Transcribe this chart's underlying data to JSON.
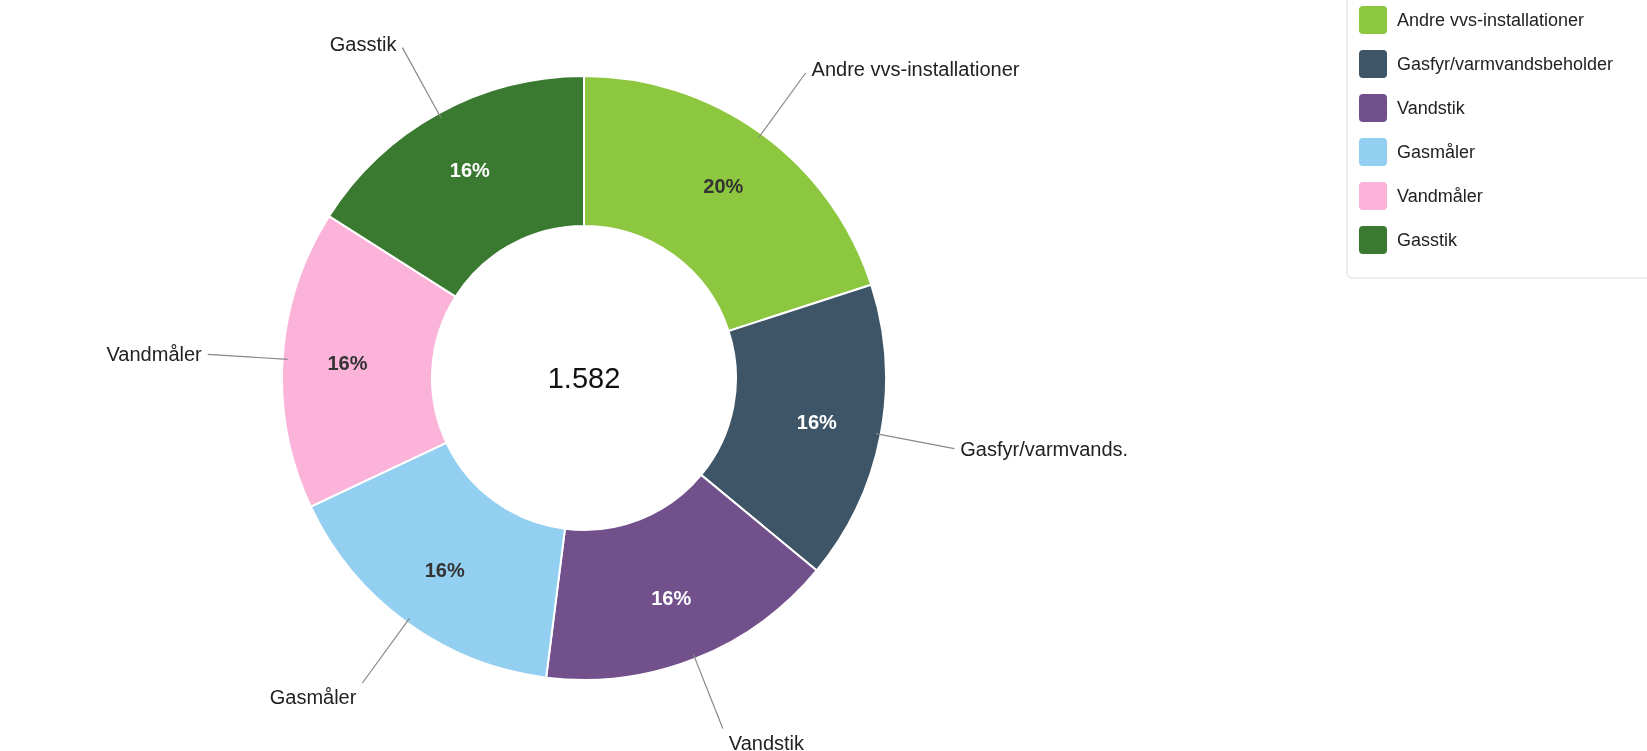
{
  "chart_data": {
    "type": "donut",
    "categories": [
      "Andre vvs-installationer",
      "Gasfyr/varmvandsbeholder",
      "Vandstik",
      "Gasmåler",
      "Vandmåler",
      "Gasstik"
    ],
    "values": [
      20,
      16,
      16,
      16,
      16,
      16
    ],
    "value_labels": [
      "20%",
      "16%",
      "16%",
      "16%",
      "16%",
      "16%"
    ],
    "colors": [
      "#8dc63f",
      "#3d5566",
      "#72508c",
      "#92cff0",
      "#fbb3d9",
      "#3a7a30"
    ],
    "annotations": [
      "1.582",
      "Andre vvs-installationer",
      "Gasfyr/varmvands.",
      "Vandstik",
      "Gasmåler",
      "Vandmåler",
      "Gasstik"
    ],
    "legend": "top right"
  }
}
